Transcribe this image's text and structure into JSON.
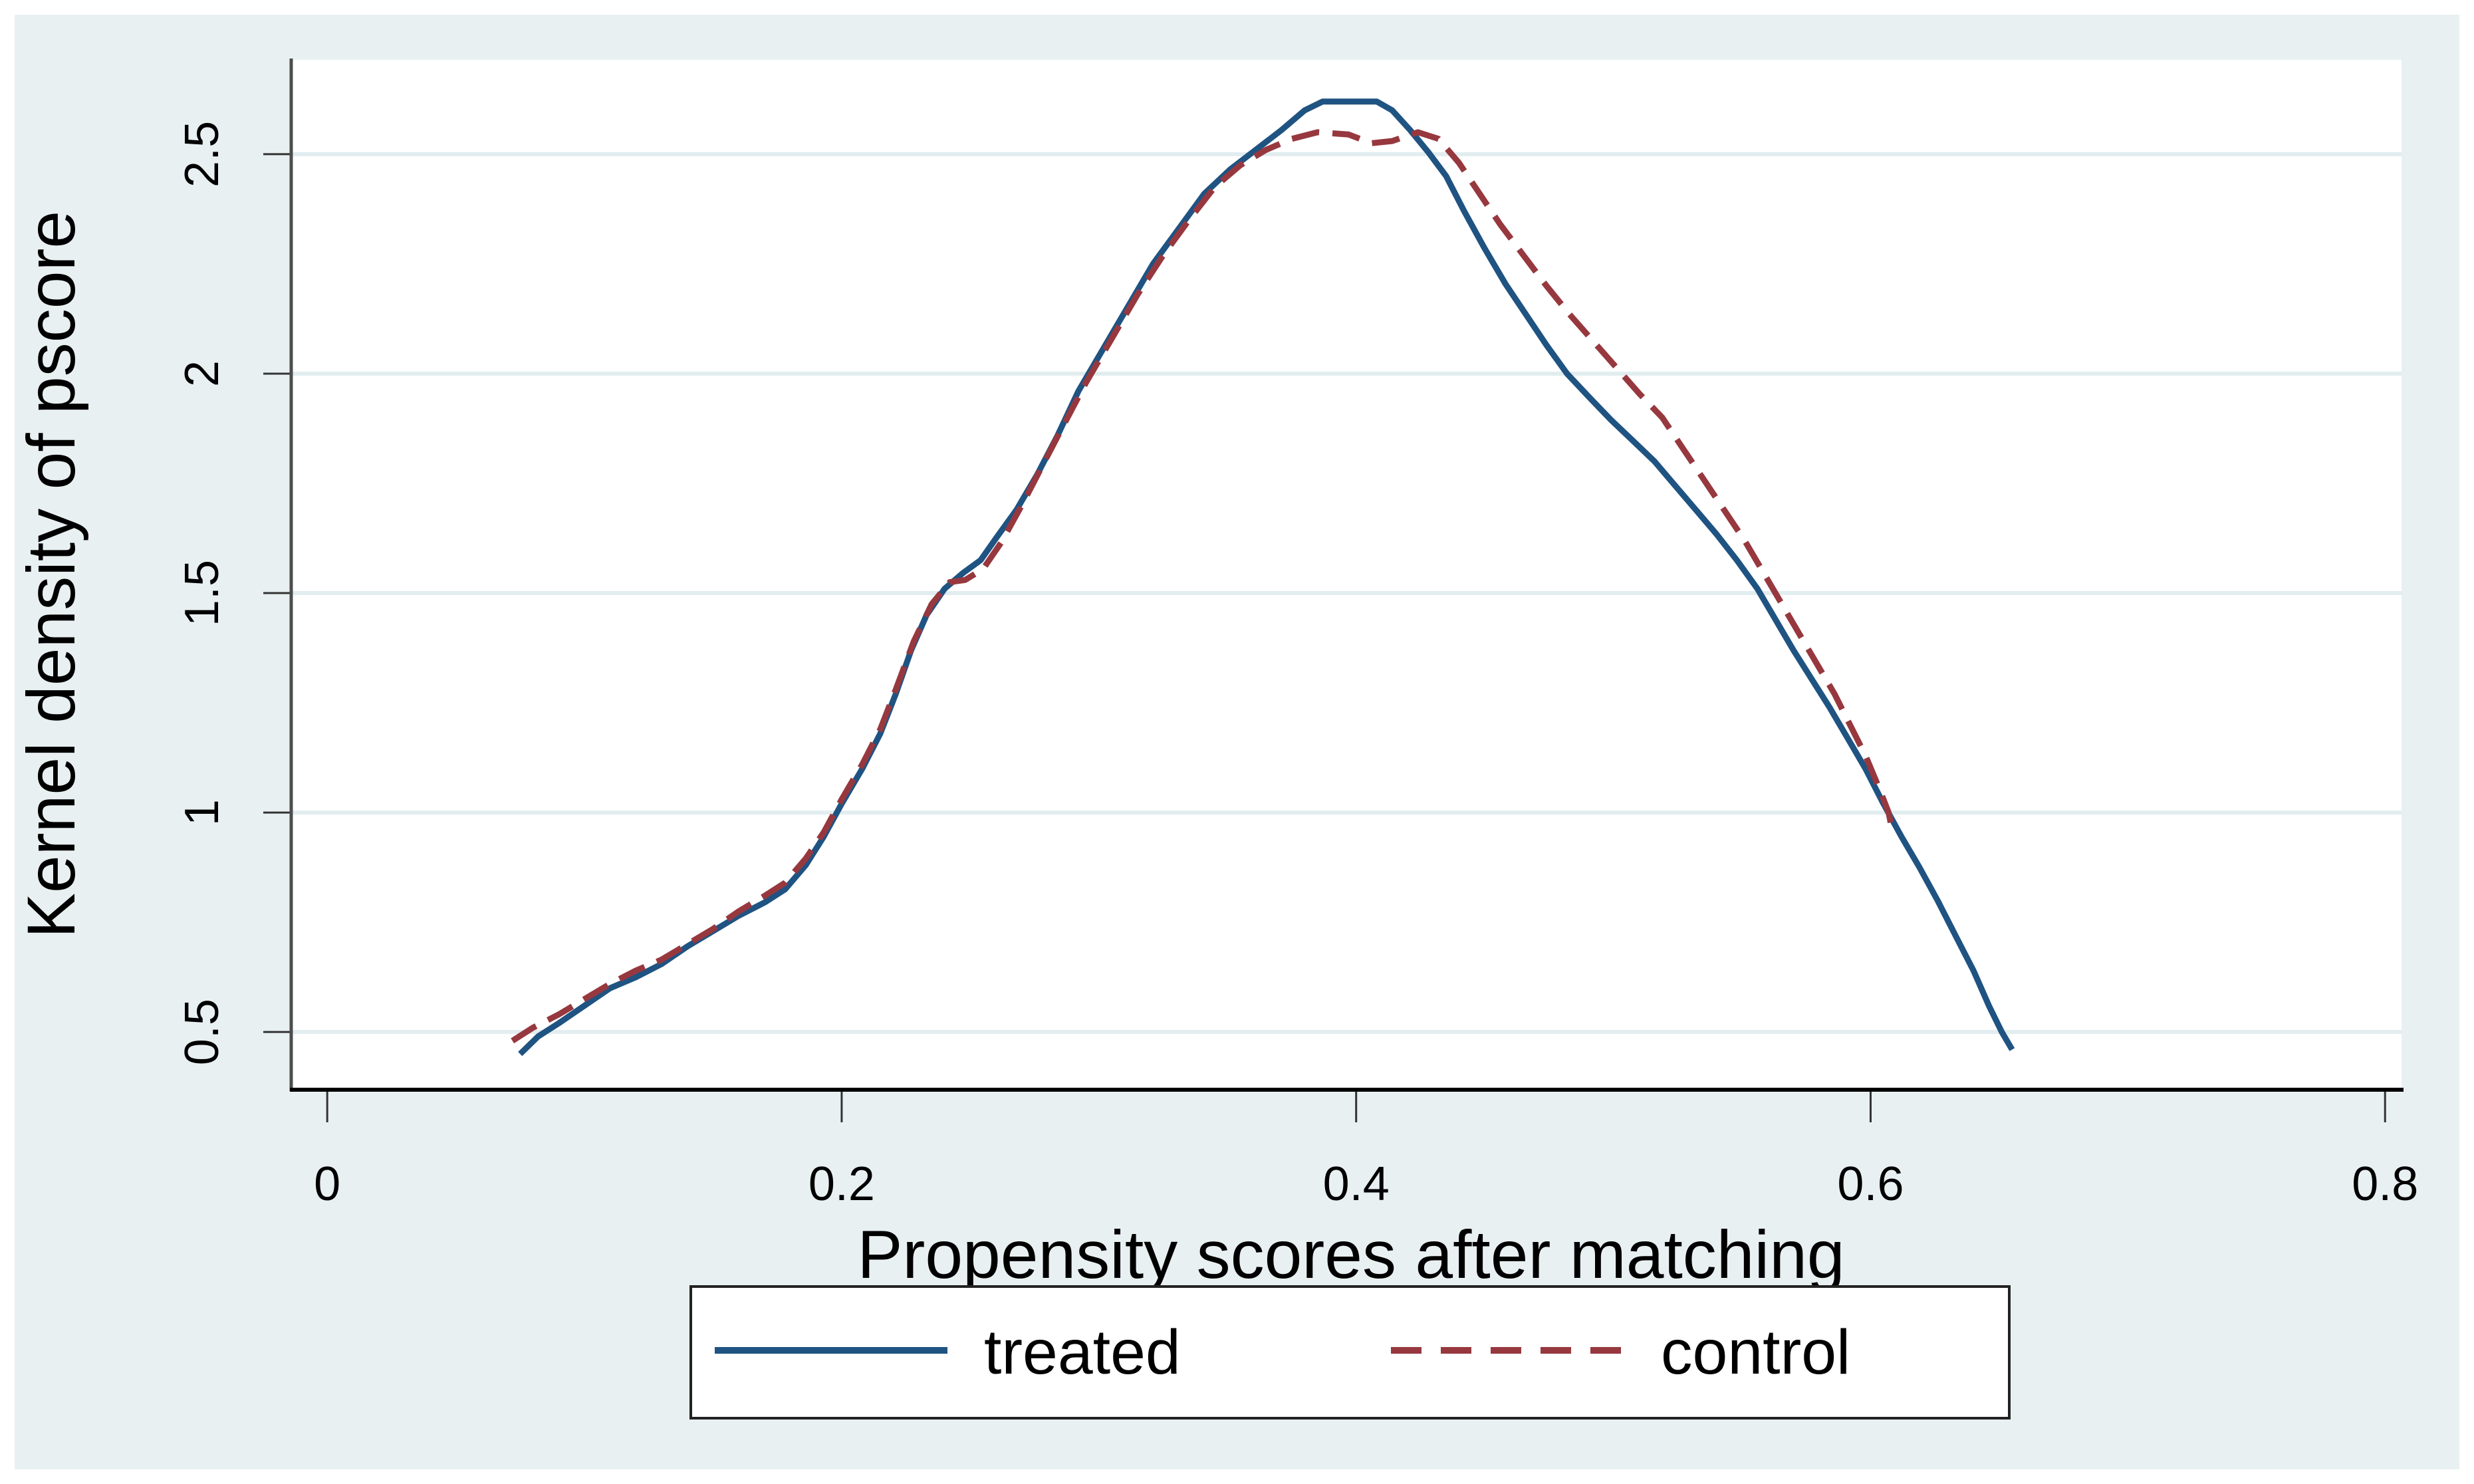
{
  "figure": {
    "outer_margin_color": "#ffffff",
    "background_color": "#e9f0f2",
    "plot_background_color": "#ffffff",
    "gridline_color": "#e2edf0",
    "x_axis_color": "#000000",
    "y_axis_color": "#4d4d4d",
    "tick_mark_color": "#333333",
    "text_color": "#000000"
  },
  "chart_data": {
    "type": "line",
    "title": "",
    "xlabel": "Propensity scores after matching",
    "ylabel": "Kernel density of pscore",
    "xlim": [
      -0.014,
      0.8064
    ],
    "ylim": [
      0.37,
      2.715
    ],
    "grid": "horizontal-only",
    "xticks": [
      {
        "v": 0.0,
        "label": "0"
      },
      {
        "v": 0.2,
        "label": "0.2"
      },
      {
        "v": 0.4,
        "label": "0.4"
      },
      {
        "v": 0.6,
        "label": "0.6"
      },
      {
        "v": 0.8,
        "label": "0.8"
      }
    ],
    "yticks": [
      {
        "v": 0.5,
        "label": "0.5"
      },
      {
        "v": 1.0,
        "label": "1"
      },
      {
        "v": 1.5,
        "label": "1.5"
      },
      {
        "v": 2.0,
        "label": "2"
      },
      {
        "v": 2.5,
        "label": "2.5"
      }
    ],
    "legend": {
      "position": "bottom-center",
      "border_color": "#222222",
      "fill": "#ffffff",
      "entries": [
        {
          "label": "treated",
          "color": "#1f5382",
          "line_style": "solid"
        },
        {
          "label": "control",
          "color": "#97383f",
          "line_style": "dashed"
        }
      ]
    },
    "series": [
      {
        "name": "treated",
        "color": "#1f5382",
        "line_style": "solid",
        "points": [
          [
            0.075,
            0.45
          ],
          [
            0.082,
            0.49
          ],
          [
            0.09,
            0.52
          ],
          [
            0.1,
            0.56
          ],
          [
            0.11,
            0.6
          ],
          [
            0.12,
            0.625
          ],
          [
            0.13,
            0.655
          ],
          [
            0.14,
            0.695
          ],
          [
            0.15,
            0.73
          ],
          [
            0.16,
            0.765
          ],
          [
            0.17,
            0.795
          ],
          [
            0.178,
            0.825
          ],
          [
            0.186,
            0.88
          ],
          [
            0.193,
            0.945
          ],
          [
            0.2,
            1.02
          ],
          [
            0.208,
            1.1
          ],
          [
            0.215,
            1.18
          ],
          [
            0.221,
            1.27
          ],
          [
            0.227,
            1.37
          ],
          [
            0.233,
            1.45
          ],
          [
            0.24,
            1.51
          ],
          [
            0.247,
            1.545
          ],
          [
            0.254,
            1.575
          ],
          [
            0.26,
            1.625
          ],
          [
            0.268,
            1.69
          ],
          [
            0.276,
            1.77
          ],
          [
            0.284,
            1.86
          ],
          [
            0.292,
            1.96
          ],
          [
            0.301,
            2.05
          ],
          [
            0.311,
            2.15
          ],
          [
            0.321,
            2.25
          ],
          [
            0.331,
            2.33
          ],
          [
            0.341,
            2.41
          ],
          [
            0.351,
            2.465
          ],
          [
            0.361,
            2.51
          ],
          [
            0.371,
            2.555
          ],
          [
            0.38,
            2.6
          ],
          [
            0.387,
            2.62
          ],
          [
            0.408,
            2.62
          ],
          [
            0.414,
            2.6
          ],
          [
            0.421,
            2.555
          ],
          [
            0.428,
            2.505
          ],
          [
            0.435,
            2.45
          ],
          [
            0.442,
            2.37
          ],
          [
            0.45,
            2.285
          ],
          [
            0.458,
            2.205
          ],
          [
            0.466,
            2.135
          ],
          [
            0.474,
            2.065
          ],
          [
            0.482,
            2.0
          ],
          [
            0.49,
            1.95
          ],
          [
            0.499,
            1.895
          ],
          [
            0.508,
            1.845
          ],
          [
            0.516,
            1.8
          ],
          [
            0.524,
            1.745
          ],
          [
            0.532,
            1.69
          ],
          [
            0.54,
            1.635
          ],
          [
            0.548,
            1.575
          ],
          [
            0.556,
            1.51
          ],
          [
            0.563,
            1.44
          ],
          [
            0.57,
            1.37
          ],
          [
            0.577,
            1.305
          ],
          [
            0.584,
            1.24
          ],
          [
            0.591,
            1.17
          ],
          [
            0.598,
            1.1
          ],
          [
            0.605,
            1.02
          ],
          [
            0.612,
            0.945
          ],
          [
            0.619,
            0.875
          ],
          [
            0.626,
            0.8
          ],
          [
            0.633,
            0.72
          ],
          [
            0.64,
            0.64
          ],
          [
            0.646,
            0.56
          ],
          [
            0.651,
            0.5
          ],
          [
            0.655,
            0.46
          ]
        ]
      },
      {
        "name": "control",
        "color": "#97383f",
        "line_style": "dashed",
        "points": [
          [
            0.072,
            0.48
          ],
          [
            0.08,
            0.51
          ],
          [
            0.09,
            0.54
          ],
          [
            0.1,
            0.575
          ],
          [
            0.11,
            0.61
          ],
          [
            0.12,
            0.64
          ],
          [
            0.13,
            0.665
          ],
          [
            0.14,
            0.7
          ],
          [
            0.15,
            0.735
          ],
          [
            0.16,
            0.775
          ],
          [
            0.17,
            0.81
          ],
          [
            0.178,
            0.84
          ],
          [
            0.186,
            0.895
          ],
          [
            0.193,
            0.955
          ],
          [
            0.2,
            1.03
          ],
          [
            0.208,
            1.11
          ],
          [
            0.215,
            1.19
          ],
          [
            0.221,
            1.28
          ],
          [
            0.228,
            1.39
          ],
          [
            0.235,
            1.475
          ],
          [
            0.242,
            1.525
          ],
          [
            0.248,
            1.53
          ],
          [
            0.255,
            1.555
          ],
          [
            0.262,
            1.615
          ],
          [
            0.27,
            1.7
          ],
          [
            0.278,
            1.79
          ],
          [
            0.286,
            1.88
          ],
          [
            0.295,
            1.98
          ],
          [
            0.305,
            2.08
          ],
          [
            0.315,
            2.18
          ],
          [
            0.325,
            2.27
          ],
          [
            0.335,
            2.35
          ],
          [
            0.345,
            2.425
          ],
          [
            0.355,
            2.475
          ],
          [
            0.365,
            2.51
          ],
          [
            0.375,
            2.535
          ],
          [
            0.385,
            2.55
          ],
          [
            0.397,
            2.545
          ],
          [
            0.406,
            2.525
          ],
          [
            0.414,
            2.53
          ],
          [
            0.424,
            2.55
          ],
          [
            0.432,
            2.535
          ],
          [
            0.44,
            2.48
          ],
          [
            0.448,
            2.41
          ],
          [
            0.456,
            2.34
          ],
          [
            0.465,
            2.27
          ],
          [
            0.474,
            2.2
          ],
          [
            0.483,
            2.135
          ],
          [
            0.492,
            2.075
          ],
          [
            0.501,
            2.015
          ],
          [
            0.51,
            1.955
          ],
          [
            0.519,
            1.9
          ],
          [
            0.527,
            1.83
          ],
          [
            0.535,
            1.76
          ],
          [
            0.543,
            1.69
          ],
          [
            0.551,
            1.62
          ],
          [
            0.558,
            1.55
          ],
          [
            0.565,
            1.48
          ],
          [
            0.572,
            1.41
          ],
          [
            0.579,
            1.34
          ],
          [
            0.586,
            1.27
          ],
          [
            0.592,
            1.2
          ],
          [
            0.598,
            1.13
          ],
          [
            0.603,
            1.06
          ],
          [
            0.607,
            1.0
          ],
          [
            0.608,
            0.97
          ]
        ]
      }
    ]
  }
}
